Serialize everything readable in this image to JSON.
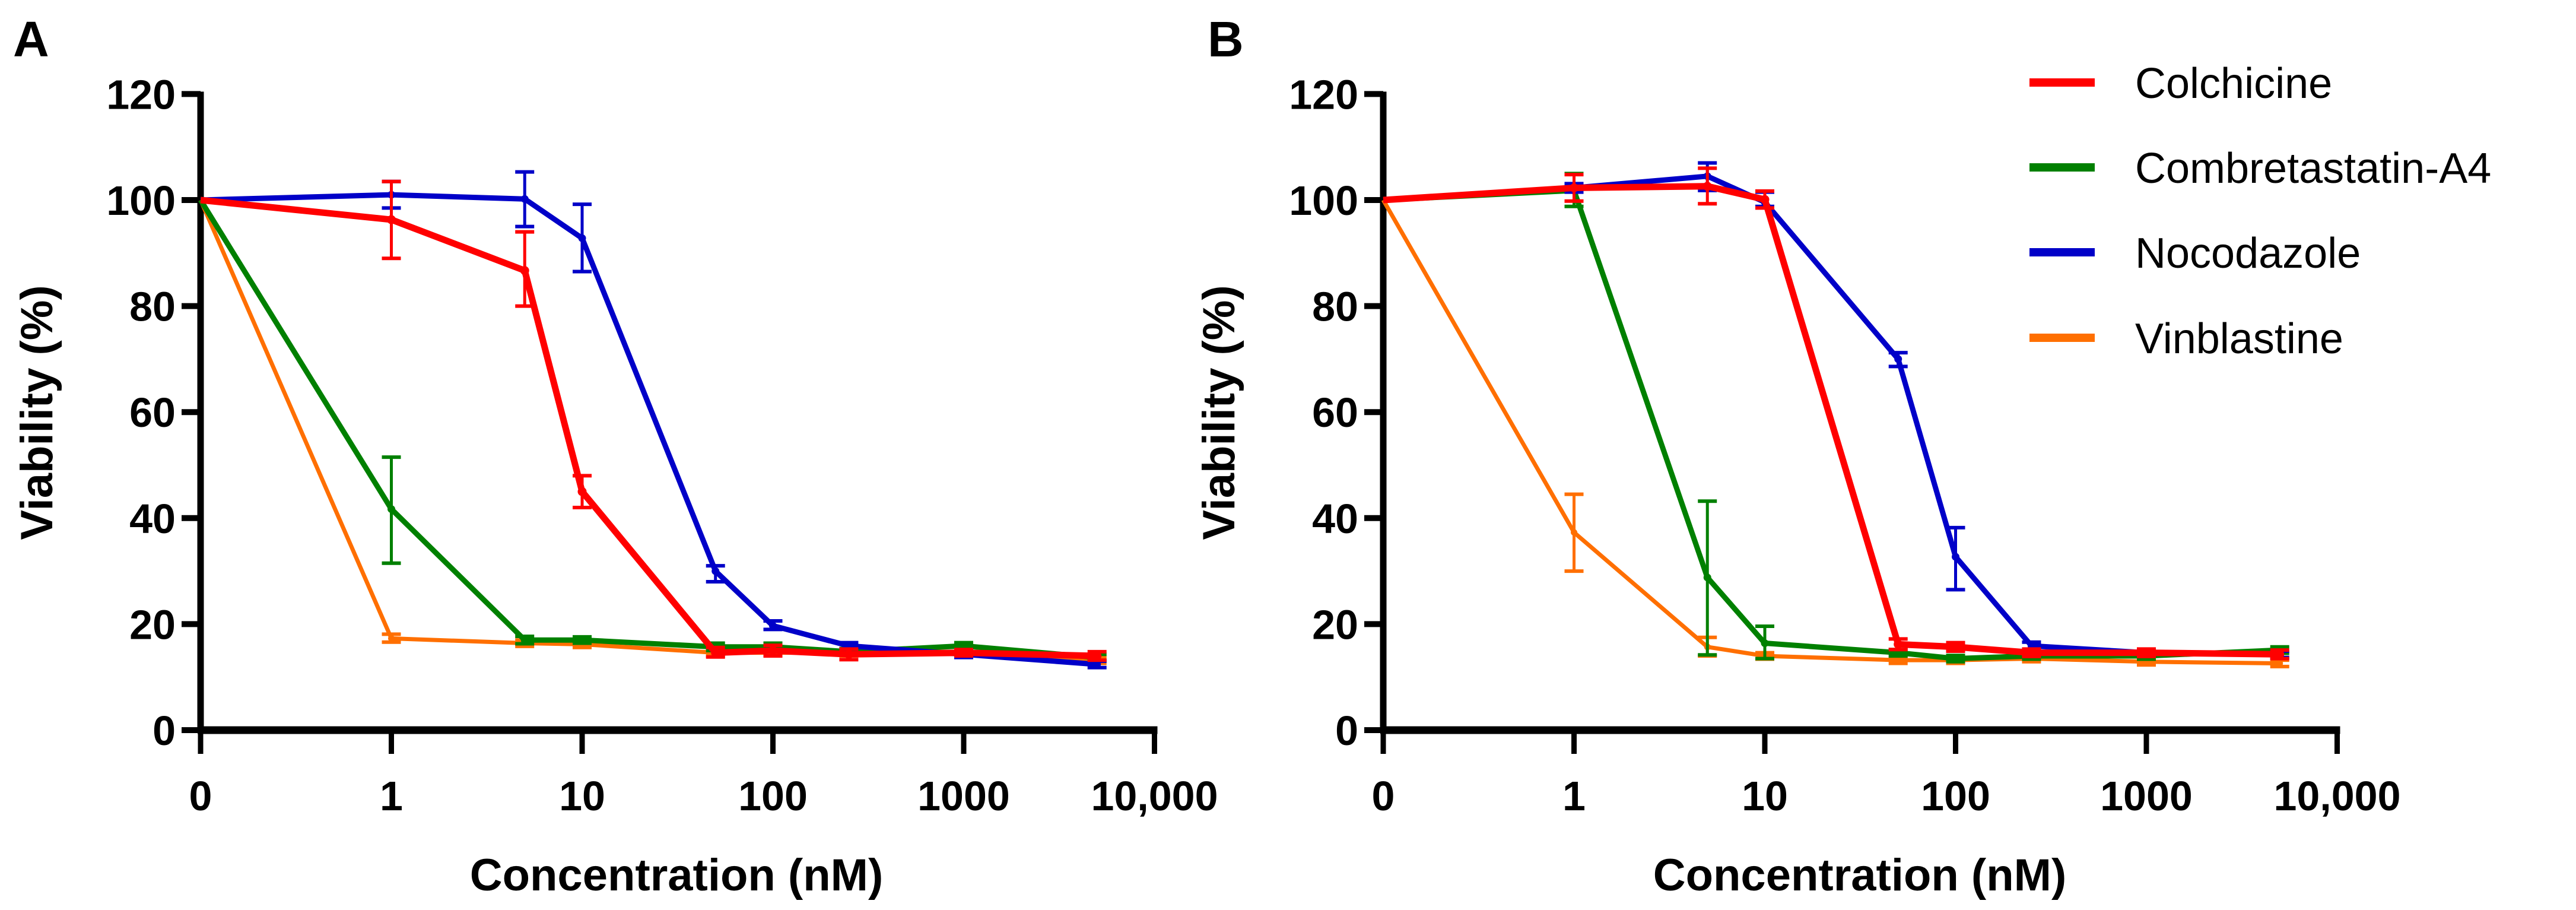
{
  "chart_data": [
    {
      "type": "line",
      "panel": "A",
      "xlabel": "Concentration (nM)",
      "ylabel": "Viability (%)",
      "x_scale": "log (with 0 at origin)",
      "x_ticks": [
        "0",
        "1",
        "10",
        "100",
        "1000",
        "10,000"
      ],
      "y_ticks": [
        "0",
        "20",
        "40",
        "60",
        "80",
        "100",
        "120"
      ],
      "ylim": [
        0,
        120
      ],
      "x": [
        0,
        1,
        5,
        10,
        50,
        100,
        250,
        1000,
        5000
      ],
      "series": [
        {
          "name": "Colchicine",
          "color": "#ff0000",
          "values": [
            100,
            96.3,
            86.7,
            45,
            14.6,
            15,
            14.3,
            14.6,
            14
          ],
          "err_low": [
            100,
            89,
            80,
            42,
            13.8,
            14,
            13.3,
            14,
            13.2
          ],
          "err_high": [
            100,
            103.5,
            94,
            48,
            15.6,
            16,
            15.3,
            15.2,
            14.8
          ]
        },
        {
          "name": "Combretastatin-A4",
          "color": "#008000",
          "values": [
            100,
            41.7,
            17,
            17,
            15.7,
            15.7,
            14.8,
            15.9,
            13.7
          ],
          "err_low": [
            100,
            31.5,
            16.3,
            16.4,
            15,
            15,
            14.2,
            15.3,
            13.1
          ],
          "err_high": [
            100,
            51.5,
            17.7,
            17.6,
            16.4,
            16.4,
            15.4,
            16.5,
            14.3
          ]
        },
        {
          "name": "Nocodazole",
          "color": "#0000c8",
          "values": [
            100,
            101,
            100.2,
            92.8,
            30,
            19.7,
            15.9,
            14.3,
            12.4
          ],
          "err_low": [
            100,
            98.5,
            95,
            86.5,
            28,
            19,
            15.3,
            13.7,
            11.8
          ],
          "err_high": [
            100,
            103.5,
            105.3,
            99.2,
            31,
            20.6,
            16.5,
            14.9,
            13
          ]
        },
        {
          "name": "Vinblastine",
          "color": "#ff6f00",
          "values": [
            100,
            17.3,
            16.4,
            16.2,
            14.6,
            14.6,
            14.6,
            14.6,
            13.2
          ],
          "err_low": [
            100,
            16.6,
            15.8,
            15.6,
            14,
            14,
            14,
            14,
            12.6
          ],
          "err_high": [
            100,
            18.1,
            17,
            16.8,
            15.2,
            15.2,
            15.2,
            15.2,
            13.8
          ]
        }
      ]
    },
    {
      "type": "line",
      "panel": "B",
      "xlabel": "Concentration (nM)",
      "ylabel": "Viability (%)",
      "x_scale": "log (with 0 at origin)",
      "x_ticks": [
        "0",
        "1",
        "10",
        "100",
        "1000",
        "10,000"
      ],
      "y_ticks": [
        "0",
        "20",
        "40",
        "60",
        "80",
        "100",
        "120"
      ],
      "ylim": [
        0,
        120
      ],
      "legend_position": "top-right",
      "x": [
        0,
        1,
        5,
        10,
        50,
        100,
        250,
        1000,
        5000
      ],
      "series": [
        {
          "name": "Colchicine",
          "color": "#ff0000",
          "values": [
            100,
            102.3,
            102.6,
            100.1,
            16.2,
            15.7,
            14.6,
            14.6,
            14.3
          ],
          "err_low": [
            100,
            99.8,
            99.3,
            98.5,
            15.2,
            14.9,
            13.9,
            13.9,
            13.5
          ],
          "err_high": [
            100,
            104.8,
            106,
            101.7,
            17.2,
            16.5,
            15.3,
            15.3,
            15.1
          ]
        },
        {
          "name": "Combretastatin-A4",
          "color": "#008000",
          "values": [
            100,
            101.8,
            28.8,
            16.4,
            14.6,
            13.5,
            14,
            14,
            15.1
          ],
          "err_low": [
            100,
            98.8,
            14.2,
            13.5,
            14,
            12.9,
            13.4,
            13.4,
            14.5
          ],
          "err_high": [
            100,
            105,
            43.2,
            19.6,
            15.2,
            14.1,
            14.6,
            14.6,
            15.7
          ]
        },
        {
          "name": "Nocodazole",
          "color": "#0000c8",
          "values": [
            100,
            102.3,
            104.5,
            99.6,
            70,
            32.7,
            15.9,
            14.6,
            14.3
          ],
          "err_low": [
            100,
            101.5,
            101.8,
            98.8,
            68.6,
            26.5,
            15.2,
            14,
            13.7
          ],
          "err_high": [
            100,
            103.1,
            107,
            101.5,
            71.2,
            38.2,
            16.6,
            15.2,
            14.9
          ]
        },
        {
          "name": "Vinblastine",
          "color": "#ff6f00",
          "values": [
            100,
            37.3,
            15.7,
            14,
            13.2,
            13.2,
            13.5,
            12.9,
            12.6
          ],
          "err_low": [
            100,
            30,
            14,
            13.4,
            12.6,
            12.6,
            12.9,
            12.3,
            12
          ],
          "err_high": [
            100,
            44.5,
            17.5,
            14.6,
            13.8,
            13.8,
            14.1,
            13.5,
            13.2
          ]
        }
      ]
    }
  ]
}
